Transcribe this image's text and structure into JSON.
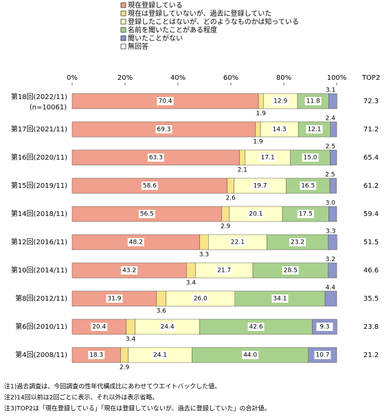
{
  "chart_data": {
    "type": "stacked-bar-horizontal",
    "categories": [
      "第18回(2022/11)",
      "第17回(2021/11)",
      "第16回(2020/11)",
      "第15回(2019/11)",
      "第14回(2018/11)",
      "第12回(2016/11)",
      "第10回(2014/11)",
      "第8回(2012/11)",
      "第6回(2010/11)",
      "第4回(2008/11)"
    ],
    "sample_note": "(n=10061)",
    "xlim": [
      0,
      100
    ],
    "xticks": [
      {
        "value": 0,
        "label": "0%"
      },
      {
        "value": 20,
        "label": "20%"
      },
      {
        "value": 40,
        "label": "40%"
      },
      {
        "value": 60,
        "label": "60%"
      },
      {
        "value": 80,
        "label": "80%"
      },
      {
        "value": 100,
        "label": "100%"
      }
    ],
    "series": [
      {
        "name": "現在登録している",
        "color": "#f0a08c",
        "values": [
          70.4,
          69.3,
          63.3,
          58.6,
          56.5,
          48.2,
          43.2,
          31.9,
          20.4,
          18.3
        ],
        "value_labels": [
          "70.4",
          "69.3",
          "63.3",
          "58.6",
          "56.5",
          "48.2",
          "43.2",
          "31.9",
          "20.4",
          "18.3"
        ]
      },
      {
        "name": "現在は登録していないが、過去に登録していた",
        "color": "#f8e38a",
        "values": [
          1.9,
          1.9,
          2.1,
          2.6,
          2.9,
          3.3,
          3.4,
          3.6,
          3.4,
          2.9
        ],
        "value_labels": [
          "1.9",
          "1.9",
          "2.1",
          "2.6",
          "2.9",
          "3.3",
          "3.4",
          "3.6",
          "3.4",
          "2.9"
        ]
      },
      {
        "name": "登録したことはないが、どのようなものかは知っている",
        "color": "#ffffc8",
        "values": [
          12.9,
          14.3,
          17.1,
          19.7,
          20.1,
          22.1,
          21.7,
          26.0,
          24.4,
          24.1
        ],
        "value_labels": [
          "12.9",
          "14.3",
          "17.1",
          "19.7",
          "20.1",
          "22.1",
          "21.7",
          "26.0",
          "24.4",
          "24.1"
        ]
      },
      {
        "name": "名前を聞いたことがある程度",
        "color": "#a9d18e",
        "values": [
          11.8,
          12.1,
          15.0,
          16.5,
          17.5,
          23.2,
          28.5,
          34.1,
          42.6,
          44.0
        ],
        "value_labels": [
          "11.8",
          "12.1",
          "15.0",
          "16.5",
          "17.5",
          "23.2",
          "28.5",
          "34.1",
          "42.6",
          "44.0"
        ]
      },
      {
        "name": "聞いたことがない",
        "color": "#8e95c9",
        "values": [
          3.1,
          2.4,
          2.5,
          2.5,
          3.0,
          3.3,
          3.2,
          4.4,
          9.3,
          10.7
        ],
        "value_labels": [
          "3.1",
          "2.4",
          "2.5",
          "2.5",
          "3.0",
          "3.3",
          "3.2",
          "4.4",
          "9.3",
          "10.7"
        ]
      },
      {
        "name": "無回答",
        "color": "#ffffff",
        "values": [
          0,
          0,
          0,
          0,
          0,
          0,
          0,
          0,
          0,
          0
        ]
      }
    ],
    "top2": {
      "label": "TOP2",
      "values": [
        72.3,
        71.2,
        65.4,
        61.2,
        59.4,
        51.5,
        46.6,
        35.5,
        23.8,
        21.2
      ]
    },
    "notes": [
      "注1)過去調査は、今回調査の性年代構成比にあわせてウエイトバックした値。",
      "注2)14回以前は2回ごとに表示、それ以外は表示省略。",
      "注3)TOP2は「現在登録している」「現在は登録していないが、過去に登録していた」の合計値。"
    ]
  }
}
